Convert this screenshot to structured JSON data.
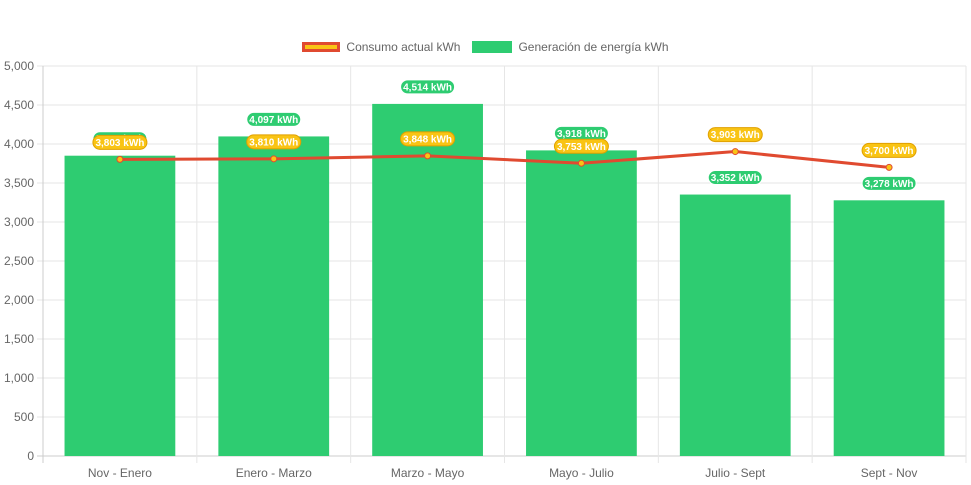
{
  "chart_data": {
    "type": "bar",
    "categories": [
      "Nov - Enero",
      "Enero - Marzo",
      "Marzo - Mayo",
      "Mayo - Julio",
      "Julio - Sept",
      "Sept - Nov"
    ],
    "series": [
      {
        "name": "Consumo actual kWh",
        "type": "line",
        "values": [
          3803,
          3810,
          3848,
          3753,
          3903,
          3700
        ],
        "labels": [
          "3,803 kWh",
          "3,810 kWh",
          "3,848 kWh",
          "3,753 kWh",
          "3,903 kWh",
          "3,700 kWh"
        ],
        "color": "#e04a30",
        "point_color": "#f9c414"
      },
      {
        "name": "Generación de energía kWh",
        "type": "bar",
        "values": [
          3850,
          4097,
          4514,
          3918,
          3352,
          3278
        ],
        "labels": [
          "3,850 kWh",
          "4,097 kWh",
          "4,514 kWh",
          "3,918 kWh",
          "3,352 kWh",
          "3,278 kWh"
        ],
        "color": "#2ecc71"
      }
    ],
    "title": "",
    "xlabel": "",
    "ylabel": "",
    "ylim": [
      0,
      5000
    ],
    "yticks": [
      "0",
      "500",
      "1,000",
      "1,500",
      "2,000",
      "2,500",
      "3,000",
      "3,500",
      "4,000",
      "4,500",
      "5,000"
    ],
    "grid": true,
    "legend_position": "top"
  }
}
